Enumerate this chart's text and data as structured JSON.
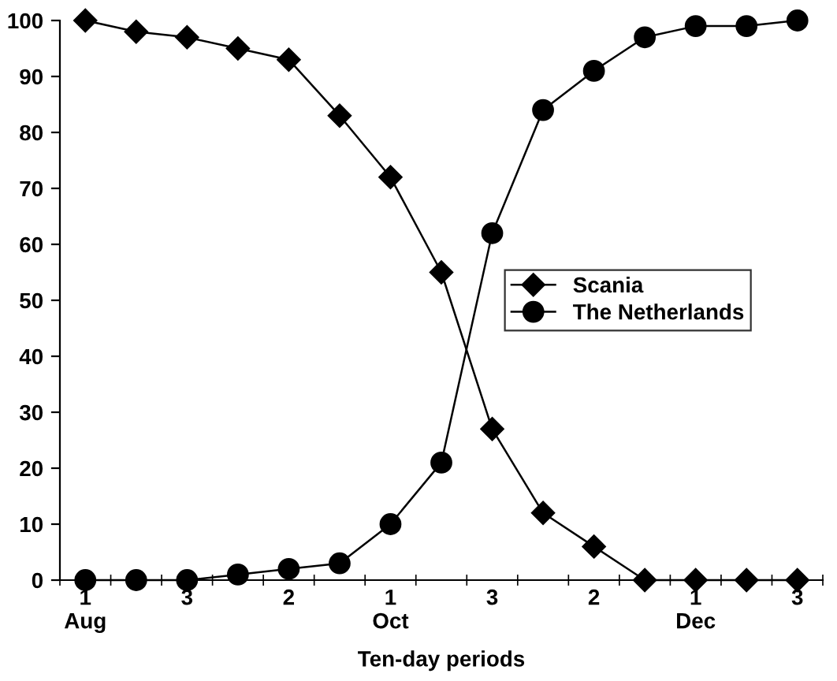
{
  "chart_data": {
    "type": "line",
    "xlabel": "Ten-day periods",
    "categories": [
      "1\nAug",
      null,
      "3",
      null,
      "2",
      null,
      "1\nOct",
      null,
      "3",
      null,
      "2",
      null,
      "1\nDec",
      null,
      "3"
    ],
    "series": [
      {
        "name": "Scania",
        "color": "#000000",
        "marker": "diamond",
        "values": [
          100,
          98,
          97,
          95,
          93,
          83,
          72,
          55,
          27,
          12,
          6,
          0,
          0,
          0,
          0
        ]
      },
      {
        "name": "The Netherlands",
        "color": "#000000",
        "marker": "circle",
        "values": [
          0,
          0,
          0,
          1,
          2,
          3,
          10,
          21,
          62,
          84,
          91,
          97,
          99,
          99,
          100
        ]
      }
    ],
    "ylim": [
      0,
      100
    ],
    "yticks": [
      0,
      10,
      20,
      30,
      40,
      50,
      60,
      70,
      80,
      90,
      100
    ],
    "grid": false,
    "legend": "right",
    "line_style": "solid"
  }
}
